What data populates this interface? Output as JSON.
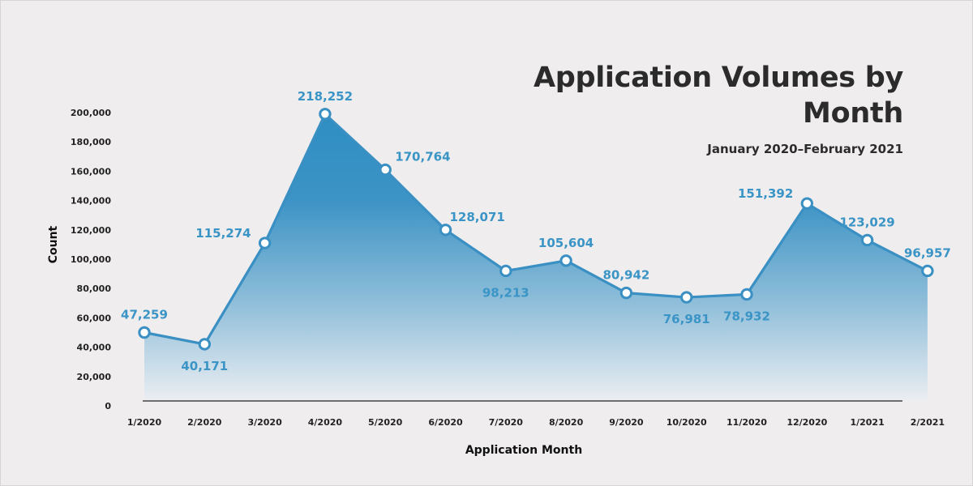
{
  "title": "Application Volumes by Month",
  "subtitle": "January 2020–February 2021",
  "colors": {
    "line": "#3a8fc3",
    "label": "#3a95c6",
    "background": "#efedee",
    "text": "#2b2b2b"
  },
  "chart_data": {
    "type": "area",
    "title": "Application Volumes by Month",
    "subtitle": "January 2020–February 2021",
    "xlabel": "Application Month",
    "ylabel": "Count",
    "ylim": [
      0,
      200000
    ],
    "yticks": [
      0,
      20000,
      40000,
      60000,
      80000,
      100000,
      120000,
      140000,
      160000,
      180000,
      200000
    ],
    "ytick_labels": [
      "0",
      "20,000",
      "40,000",
      "60,000",
      "80,000",
      "100,000",
      "120,000",
      "140,000",
      "160,000",
      "180,000",
      "200,000"
    ],
    "grid": false,
    "categories": [
      "1/2020",
      "2/2020",
      "3/2020",
      "4/2020",
      "5/2020",
      "6/2020",
      "7/2020",
      "8/2020",
      "9/2020",
      "10/2020",
      "11/2020",
      "12/2020",
      "1/2021",
      "2/2021"
    ],
    "plotted_y": [
      50000,
      42000,
      111000,
      199000,
      161000,
      120000,
      92000,
      99000,
      77000,
      74000,
      76000,
      138000,
      113000,
      92000
    ],
    "series": [
      {
        "values": [
          47259,
          40171,
          115274,
          218252,
          170764,
          128071,
          98213,
          105604,
          80942,
          76981,
          78932,
          151392,
          123029,
          96957
        ],
        "data_labels": [
          "47,259",
          "40,171",
          "115,274",
          "218,252",
          "170,764",
          "128,071",
          "98,213",
          "105,604",
          "80,942",
          "76,981",
          "78,932",
          "151,392",
          "123,029",
          "96,957"
        ]
      }
    ],
    "label_positions": [
      "above",
      "below",
      "left",
      "above",
      "right",
      "above-right",
      "below",
      "above",
      "above",
      "below",
      "below",
      "left",
      "above",
      "above"
    ]
  }
}
